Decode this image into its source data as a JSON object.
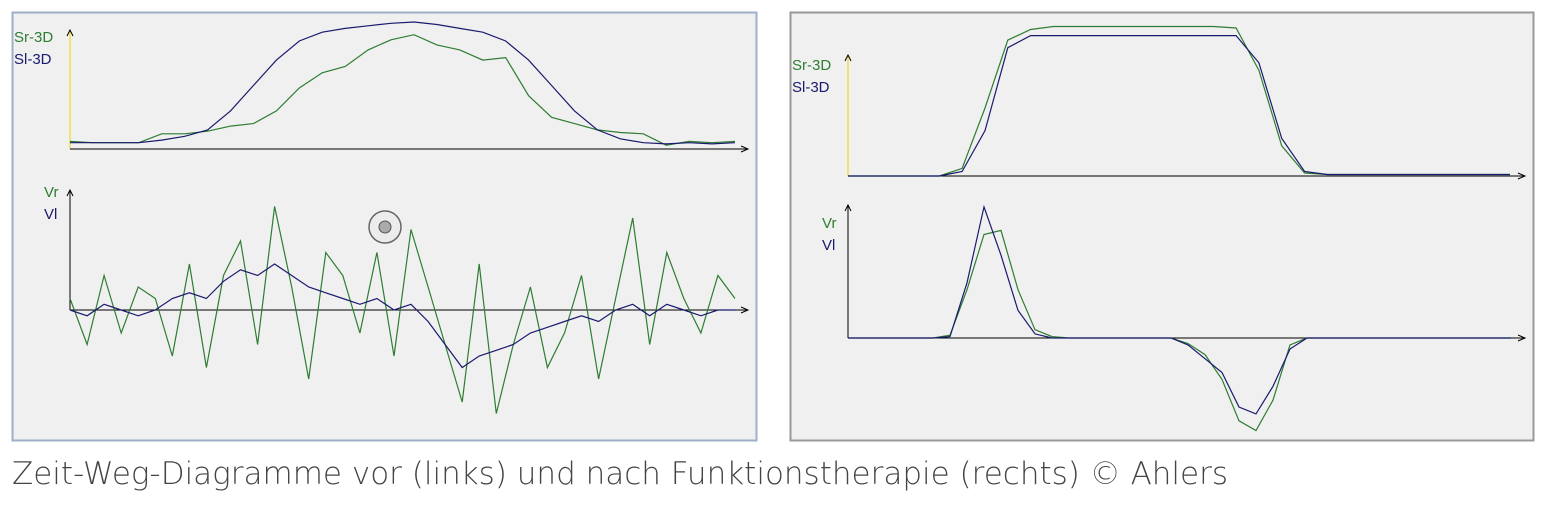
{
  "caption": "Zeit-Weg-Diagramme vor (links) und nach Funktionstherapie (rechts) © Ahlers",
  "chart_data": [
    {
      "type": "line",
      "ylim": [
        0,
        1
      ],
      "series": [
        {
          "name": "Sr-3D",
          "color": "#2e7d32",
          "values": [
            0.06,
            0.05,
            0.05,
            0.05,
            0.12,
            0.12,
            0.14,
            0.18,
            0.2,
            0.3,
            0.48,
            0.6,
            0.65,
            0.78,
            0.86,
            0.9,
            0.82,
            0.78,
            0.7,
            0.72,
            0.42,
            0.25,
            0.2,
            0.15,
            0.13,
            0.12,
            0.03,
            0.06,
            0.05,
            0.06
          ]
        },
        {
          "name": "Sl-3D",
          "color": "#1a1a6e",
          "values": [
            0.05,
            0.05,
            0.05,
            0.05,
            0.07,
            0.1,
            0.15,
            0.3,
            0.5,
            0.7,
            0.85,
            0.92,
            0.95,
            0.97,
            0.99,
            1.0,
            0.98,
            0.95,
            0.92,
            0.85,
            0.7,
            0.5,
            0.3,
            0.15,
            0.08,
            0.05,
            0.04,
            0.05,
            0.04,
            0.05
          ]
        }
      ]
    },
    {
      "type": "line",
      "ylim": [
        -1,
        1
      ],
      "series": [
        {
          "name": "Vr",
          "color": "#2e7d32",
          "values": [
            0.1,
            -0.3,
            0.3,
            -0.2,
            0.2,
            0.1,
            -0.4,
            0.4,
            -0.5,
            0.3,
            0.6,
            -0.3,
            0.9,
            0.2,
            -0.6,
            0.5,
            0.3,
            -0.2,
            0.5,
            -0.4,
            0.7,
            0.2,
            -0.3,
            -0.8,
            0.4,
            -0.9,
            -0.3,
            0.2,
            -0.5,
            -0.2,
            0.3,
            -0.6,
            0.1,
            0.8,
            -0.3,
            0.5,
            0.1,
            -0.2,
            0.3,
            0.1
          ]
        },
        {
          "name": "Vl",
          "color": "#1a1a6e",
          "values": [
            0,
            -0.05,
            0.05,
            0,
            -0.05,
            0,
            0.1,
            0.15,
            0.1,
            0.25,
            0.35,
            0.3,
            0.4,
            0.3,
            0.2,
            0.15,
            0.1,
            0.05,
            0.1,
            0,
            0.05,
            -0.1,
            -0.3,
            -0.5,
            -0.4,
            -0.35,
            -0.3,
            -0.2,
            -0.15,
            -0.1,
            -0.05,
            -0.1,
            0,
            0.05,
            -0.05,
            0.05,
            0,
            -0.05,
            0,
            0
          ]
        }
      ]
    },
    {
      "type": "line",
      "ylim": [
        0,
        1
      ],
      "series": [
        {
          "name": "Sr-3D",
          "color": "#2e7d32",
          "values": [
            0,
            0,
            0,
            0,
            0,
            0.05,
            0.45,
            0.9,
            0.97,
            0.99,
            0.99,
            0.99,
            0.99,
            0.99,
            0.99,
            0.99,
            0.99,
            0.98,
            0.7,
            0.2,
            0.02,
            0.01,
            0.01,
            0.01,
            0.01,
            0.01,
            0.01,
            0.01,
            0.01,
            0.01
          ]
        },
        {
          "name": "Sl-3D",
          "color": "#1a1a6e",
          "values": [
            0,
            0,
            0,
            0,
            0,
            0.03,
            0.3,
            0.85,
            0.93,
            0.93,
            0.93,
            0.93,
            0.93,
            0.93,
            0.93,
            0.93,
            0.93,
            0.93,
            0.75,
            0.25,
            0.03,
            0.01,
            0.01,
            0.01,
            0.01,
            0.01,
            0.01,
            0.01,
            0.01,
            0.01
          ]
        }
      ]
    },
    {
      "type": "line",
      "ylim": [
        -1,
        1
      ],
      "series": [
        {
          "name": "Vr",
          "color": "#2e7d32",
          "values": [
            0,
            0,
            0,
            0,
            0,
            0,
            0.02,
            0.35,
            0.75,
            0.78,
            0.35,
            0.06,
            0.01,
            0,
            0,
            0,
            0,
            0,
            0,
            0,
            -0.04,
            -0.12,
            -0.3,
            -0.6,
            -0.67,
            -0.45,
            -0.05,
            0,
            0,
            0,
            0,
            0,
            0,
            0,
            0,
            0,
            0,
            0,
            0,
            0
          ]
        },
        {
          "name": "Vl",
          "color": "#1a1a6e",
          "values": [
            0,
            0,
            0,
            0,
            0,
            0,
            0.01,
            0.4,
            0.95,
            0.6,
            0.2,
            0.03,
            0,
            0,
            0,
            0,
            0,
            0,
            0,
            0,
            -0.05,
            -0.15,
            -0.25,
            -0.5,
            -0.55,
            -0.35,
            -0.08,
            0,
            0,
            0,
            0,
            0,
            0,
            0,
            0,
            0,
            0,
            0,
            0,
            0
          ]
        }
      ]
    }
  ]
}
